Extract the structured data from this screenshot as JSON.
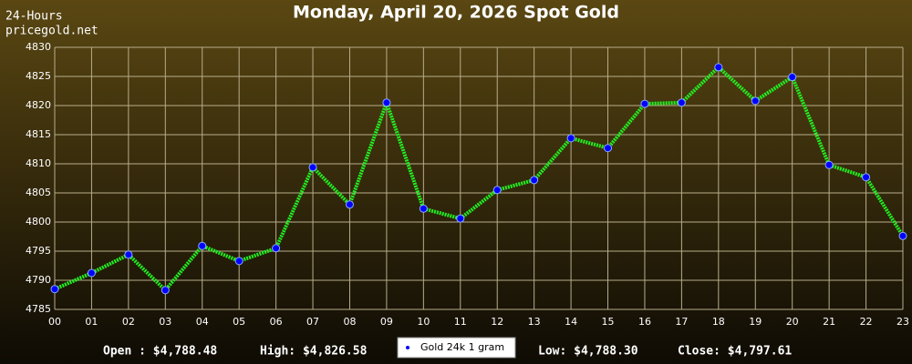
{
  "chart_data": {
    "type": "line",
    "title": "Monday, April 20, 2026 Spot Gold",
    "annotations": [
      "24-Hours",
      "pricegold.net"
    ],
    "categories": [
      "00",
      "01",
      "02",
      "03",
      "04",
      "05",
      "06",
      "07",
      "08",
      "09",
      "10",
      "11",
      "12",
      "13",
      "14",
      "15",
      "16",
      "17",
      "18",
      "19",
      "20",
      "21",
      "22",
      "23"
    ],
    "series": [
      {
        "name": "Gold 24k 1 gram",
        "color": "#22ee22",
        "marker_color": "#0000ff",
        "values": [
          4788.48,
          4791.25,
          4794.4,
          4788.3,
          4795.9,
          4793.3,
          4795.5,
          4809.4,
          4803.0,
          4820.5,
          4802.3,
          4800.6,
          4805.5,
          4807.2,
          4814.4,
          4812.7,
          4820.3,
          4820.5,
          4826.58,
          4820.8,
          4824.9,
          4809.8,
          4807.7,
          4797.61
        ]
      }
    ],
    "ylim": [
      4785,
      4830
    ],
    "yticks": [
      4785,
      4790,
      4795,
      4800,
      4805,
      4810,
      4815,
      4820,
      4825,
      4830
    ],
    "grid": true,
    "stats": [
      "Open : $4,788.48",
      "High: $4,826.58",
      "Low: $4,788.30",
      "Close: $4,797.61"
    ]
  }
}
